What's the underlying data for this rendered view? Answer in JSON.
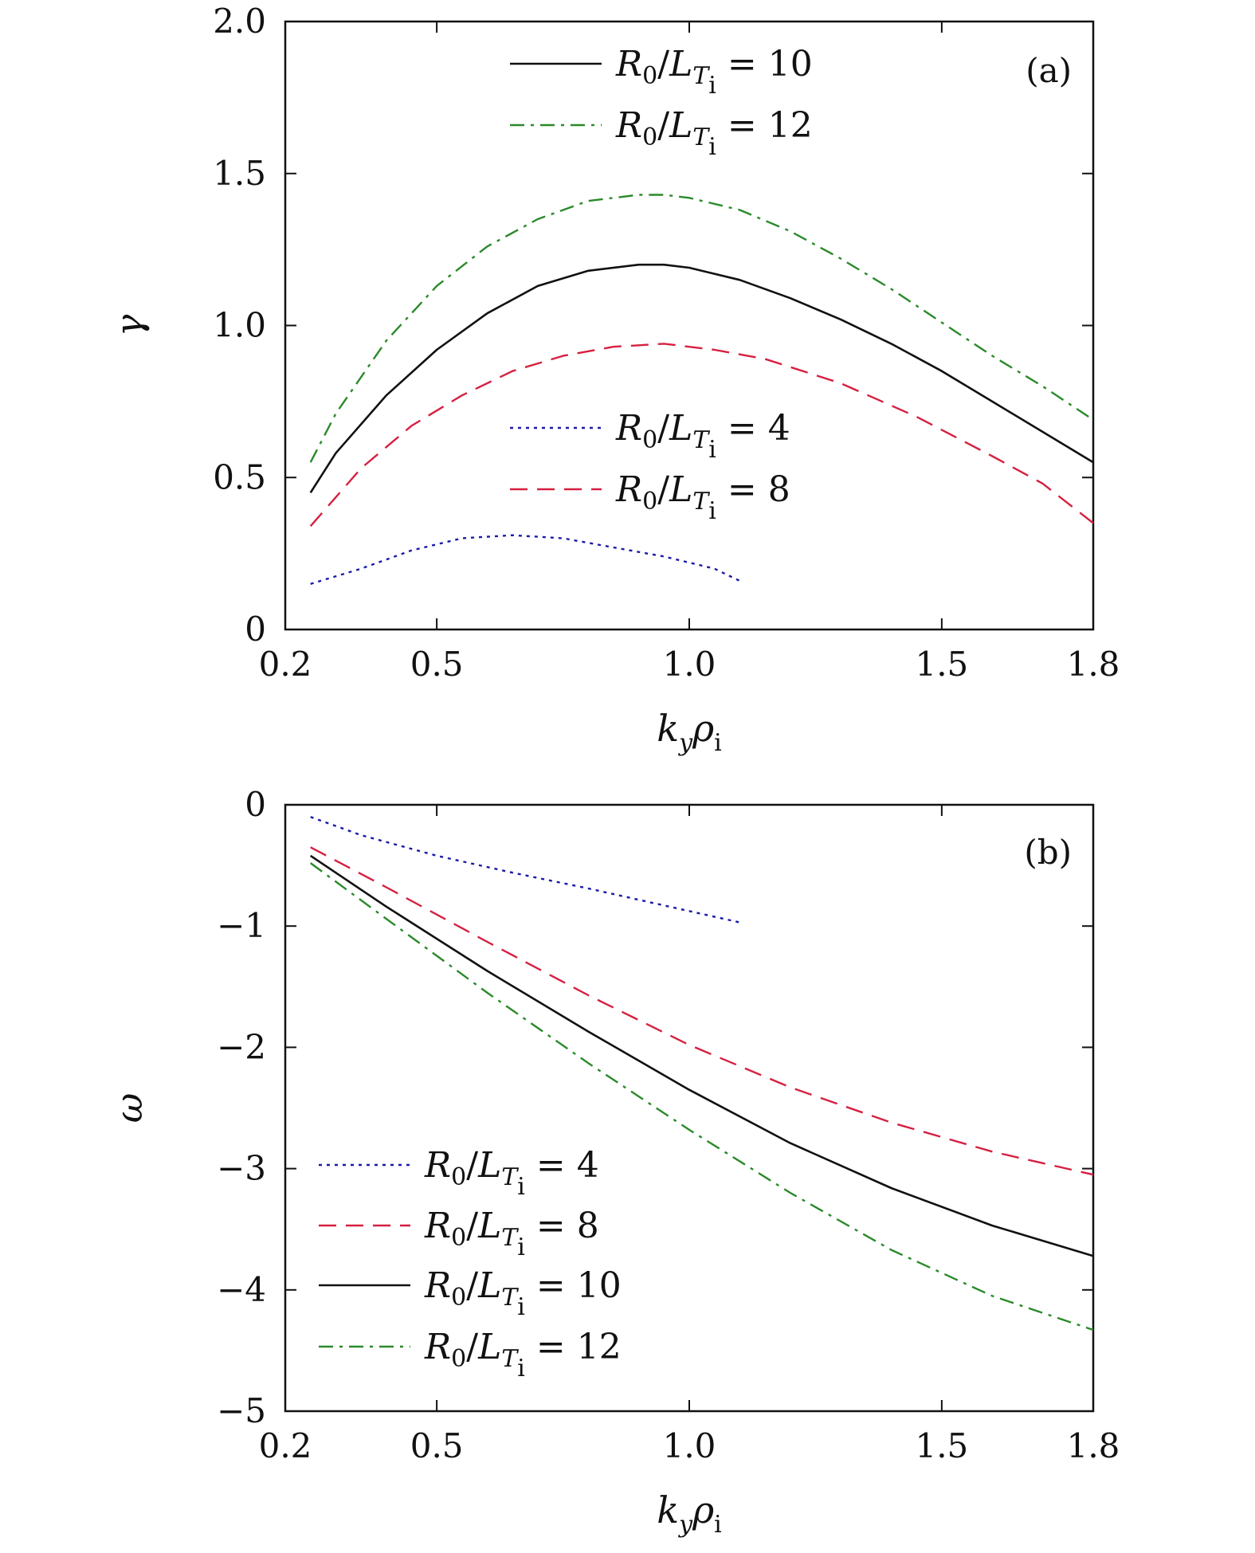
{
  "chart_data": [
    {
      "type": "line",
      "panel_label": "(a)",
      "xlabel": "kyρi",
      "ylabel": "γ",
      "xlim": [
        0.2,
        1.8
      ],
      "ylim": [
        0,
        2.0
      ],
      "xticks": [
        0.2,
        0.5,
        1.0,
        1.5,
        1.8
      ],
      "xtick_labels": [
        "0.2",
        "0.5",
        "1.0",
        "1.5",
        "1.8"
      ],
      "yticks": [
        0,
        0.5,
        1.0,
        1.5,
        2.0
      ],
      "ytick_labels": [
        "0",
        "0.5",
        "1.0",
        "1.5",
        "2.0"
      ],
      "grid": false,
      "series": [
        {
          "name": "R0/LTi = 4",
          "value": "4",
          "color": "#1a1aa8",
          "style": "dotted",
          "x": [
            0.25,
            0.35,
            0.45,
            0.55,
            0.65,
            0.75,
            0.85,
            0.95,
            1.05,
            1.1
          ],
          "y": [
            0.15,
            0.2,
            0.26,
            0.3,
            0.31,
            0.3,
            0.27,
            0.24,
            0.2,
            0.16
          ]
        },
        {
          "name": "R0/LTi = 8",
          "value": "8",
          "color": "#d62040",
          "style": "dashed",
          "x": [
            0.25,
            0.35,
            0.45,
            0.55,
            0.65,
            0.75,
            0.85,
            0.95,
            1.05,
            1.15,
            1.3,
            1.45,
            1.6,
            1.7,
            1.8
          ],
          "y": [
            0.34,
            0.53,
            0.67,
            0.77,
            0.85,
            0.9,
            0.93,
            0.94,
            0.92,
            0.89,
            0.81,
            0.7,
            0.57,
            0.48,
            0.35
          ]
        },
        {
          "name": "R0/LTi = 10",
          "value": "10",
          "color": "#111111",
          "style": "solid",
          "x": [
            0.25,
            0.3,
            0.4,
            0.5,
            0.6,
            0.7,
            0.8,
            0.9,
            0.95,
            1.0,
            1.1,
            1.2,
            1.3,
            1.4,
            1.5,
            1.6,
            1.7,
            1.8
          ],
          "y": [
            0.45,
            0.58,
            0.77,
            0.92,
            1.04,
            1.13,
            1.18,
            1.2,
            1.2,
            1.19,
            1.15,
            1.09,
            1.02,
            0.94,
            0.85,
            0.75,
            0.65,
            0.55
          ]
        },
        {
          "name": "R0/LTi = 12",
          "value": "12",
          "color": "#2a8a2a",
          "style": "dashdot",
          "x": [
            0.25,
            0.3,
            0.4,
            0.5,
            0.6,
            0.7,
            0.8,
            0.9,
            0.95,
            1.0,
            1.1,
            1.2,
            1.3,
            1.4,
            1.5,
            1.6,
            1.7,
            1.8
          ],
          "y": [
            0.55,
            0.71,
            0.95,
            1.13,
            1.26,
            1.35,
            1.41,
            1.43,
            1.43,
            1.42,
            1.38,
            1.31,
            1.22,
            1.12,
            1.01,
            0.9,
            0.8,
            0.69
          ]
        }
      ],
      "legend": [
        {
          "series": 2,
          "value": "10"
        },
        {
          "series": 3,
          "value": "12"
        },
        {
          "series": 0,
          "value": "4"
        },
        {
          "series": 1,
          "value": "8"
        }
      ]
    },
    {
      "type": "line",
      "panel_label": "(b)",
      "xlabel": "kyρi",
      "ylabel": "ω",
      "xlim": [
        0.2,
        1.8
      ],
      "ylim": [
        -5,
        0
      ],
      "xticks": [
        0.2,
        0.5,
        1.0,
        1.5,
        1.8
      ],
      "xtick_labels": [
        "0.2",
        "0.5",
        "1.0",
        "1.5",
        "1.8"
      ],
      "yticks": [
        0,
        -1,
        -2,
        -3,
        -4,
        -5
      ],
      "ytick_labels": [
        "0",
        "−1",
        "−2",
        "−3",
        "−4",
        "−5"
      ],
      "grid": false,
      "series": [
        {
          "name": "R0/LTi = 4",
          "value": "4",
          "color": "#1a1aa8",
          "style": "dotted",
          "x": [
            0.25,
            0.35,
            0.5,
            0.65,
            0.8,
            0.95,
            1.1
          ],
          "y": [
            -0.1,
            -0.25,
            -0.42,
            -0.56,
            -0.69,
            -0.83,
            -0.97
          ]
        },
        {
          "name": "R0/LTi = 8",
          "value": "8",
          "color": "#d62040",
          "style": "dashed",
          "x": [
            0.25,
            0.4,
            0.6,
            0.8,
            1.0,
            1.2,
            1.4,
            1.6,
            1.8
          ],
          "y": [
            -0.35,
            -0.68,
            -1.13,
            -1.57,
            -1.98,
            -2.33,
            -2.62,
            -2.86,
            -3.05
          ]
        },
        {
          "name": "R0/LTi = 10",
          "value": "10",
          "color": "#111111",
          "style": "solid",
          "x": [
            0.25,
            0.4,
            0.6,
            0.8,
            1.0,
            1.2,
            1.4,
            1.6,
            1.8
          ],
          "y": [
            -0.42,
            -0.84,
            -1.37,
            -1.87,
            -2.35,
            -2.79,
            -3.16,
            -3.47,
            -3.72
          ]
        },
        {
          "name": "R0/LTi = 12",
          "value": "12",
          "color": "#2a8a2a",
          "style": "dashdot",
          "x": [
            0.25,
            0.4,
            0.6,
            0.8,
            1.0,
            1.2,
            1.4,
            1.6,
            1.8
          ],
          "y": [
            -0.48,
            -0.94,
            -1.55,
            -2.13,
            -2.68,
            -3.2,
            -3.67,
            -4.05,
            -4.33
          ]
        }
      ],
      "legend": [
        {
          "series": 0,
          "value": "4"
        },
        {
          "series": 1,
          "value": "8"
        },
        {
          "series": 2,
          "value": "10"
        },
        {
          "series": 3,
          "value": "12"
        }
      ]
    }
  ]
}
